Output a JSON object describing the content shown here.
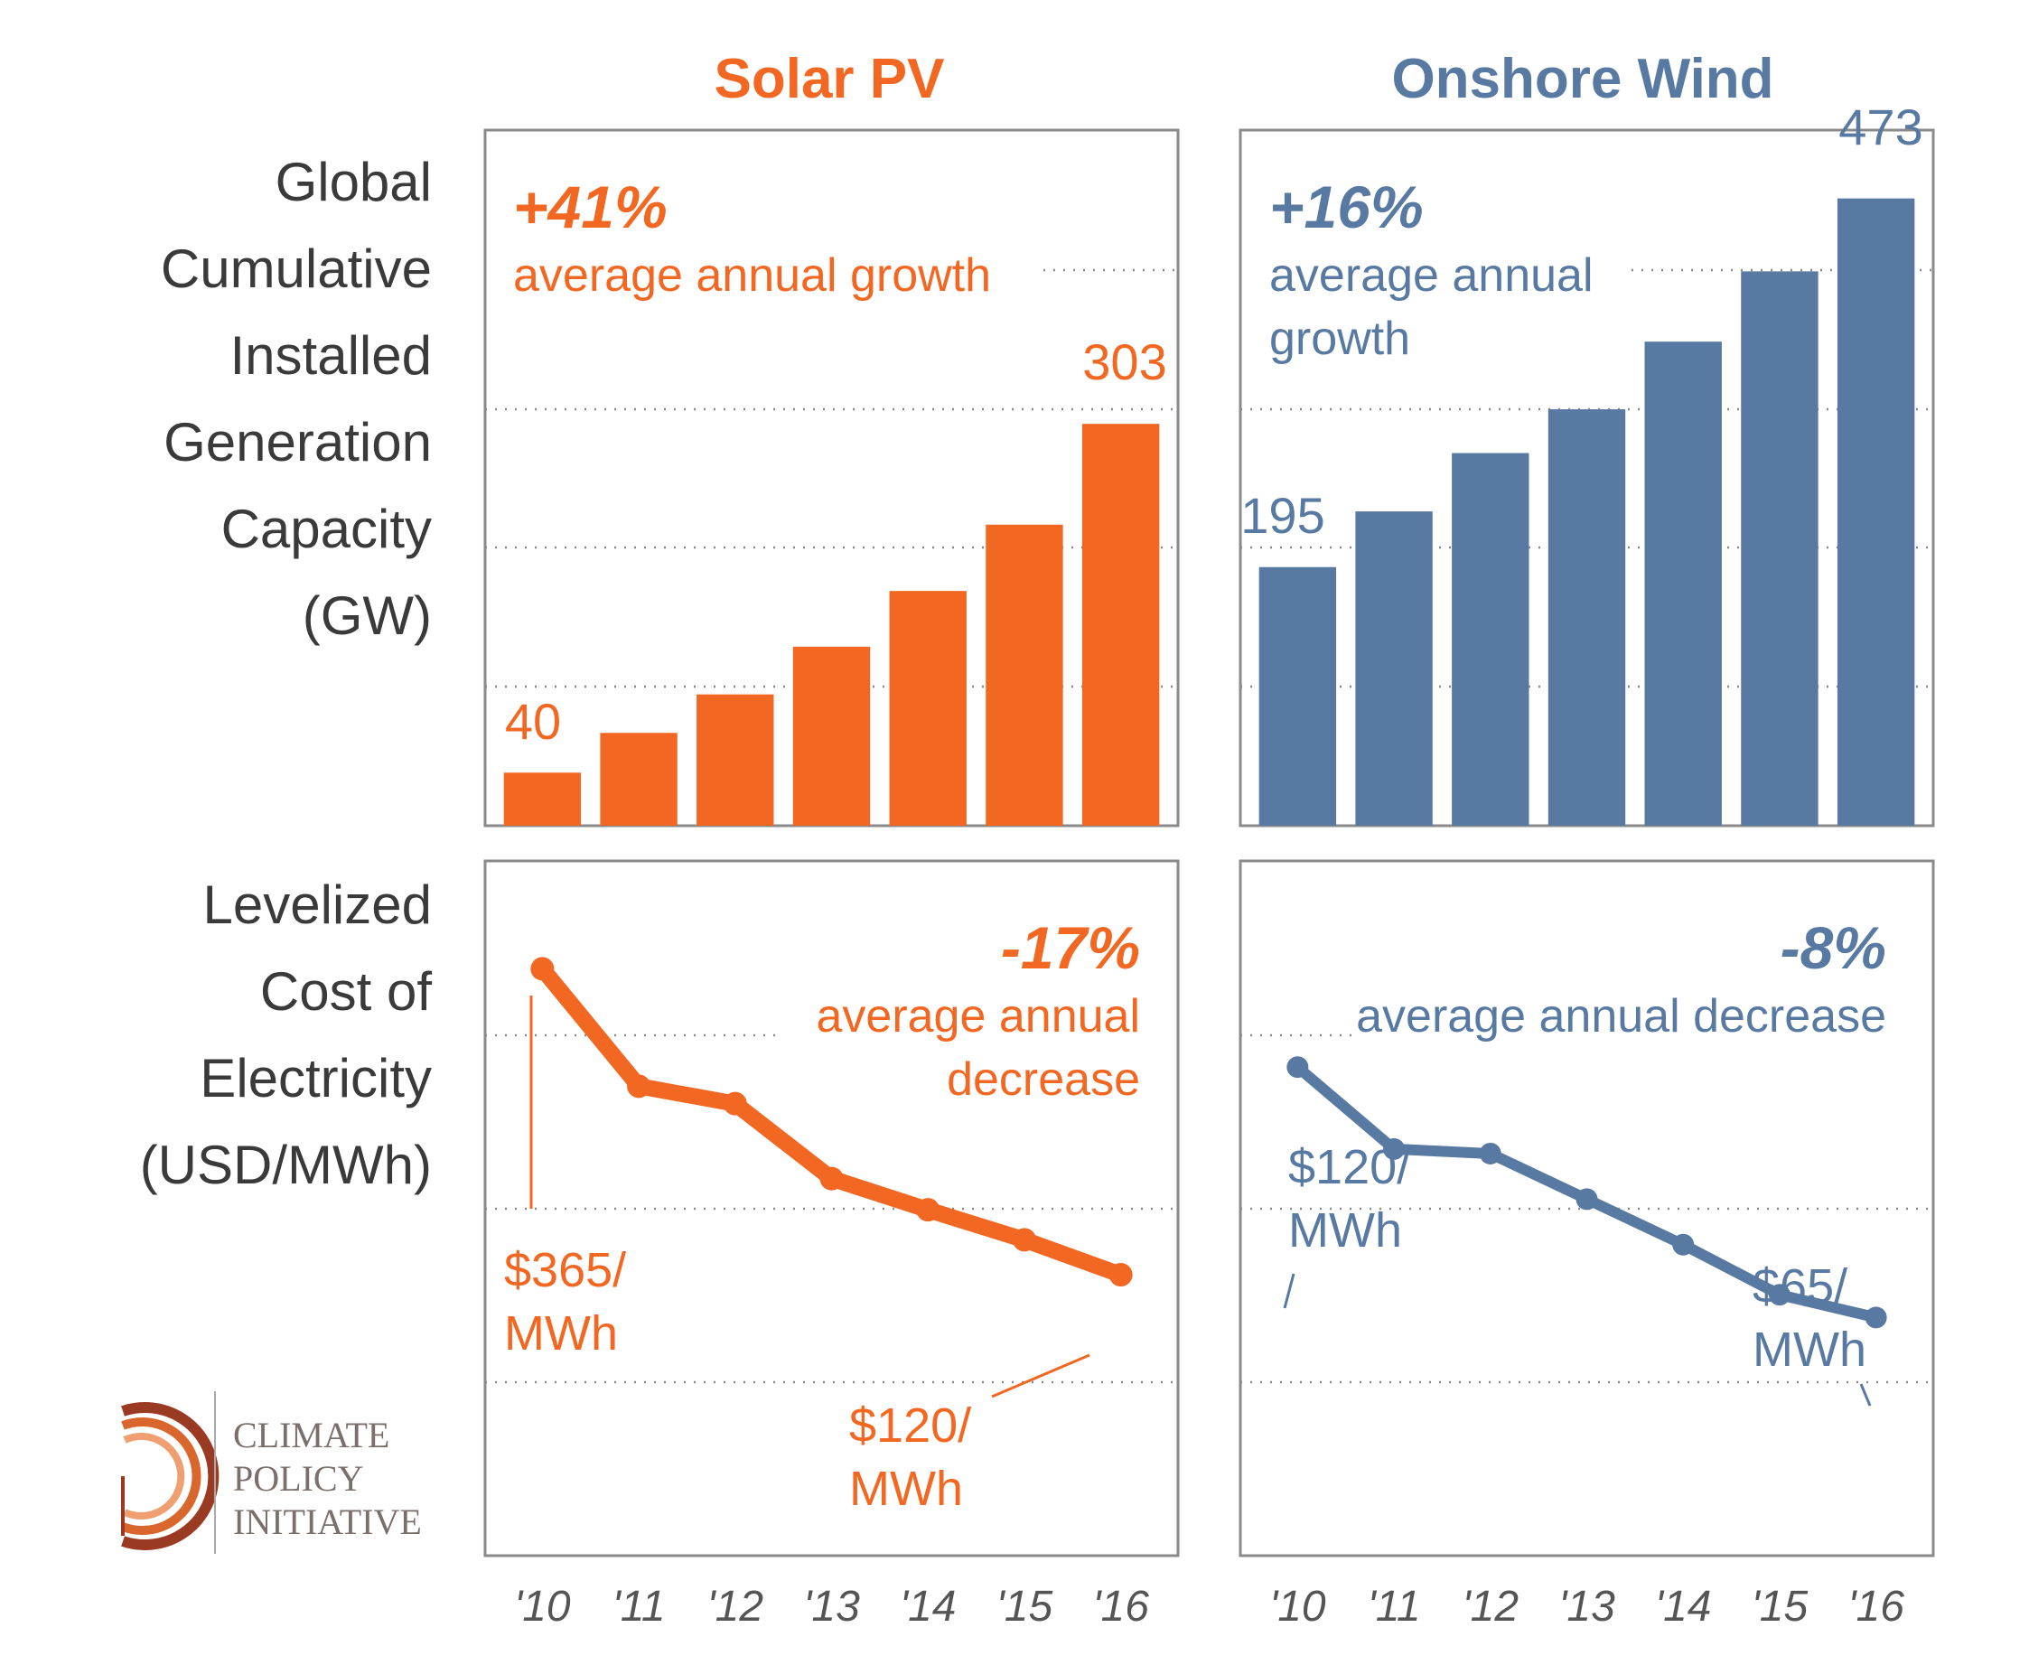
{
  "colors": {
    "solar": "#f26722",
    "wind": "#587aa2",
    "frame": "#8a8a8a",
    "grid": "#8a8a8a",
    "label": "#3a3a3a",
    "logo_text": "#7a6f6a",
    "logo_ring_dark": "#9b3a22",
    "logo_ring_mid": "#d9662c",
    "logo_ring_light": "#f0a070"
  },
  "row_labels": {
    "capacity": [
      "Global",
      "Cumulative",
      "Installed",
      "Generation",
      "Capacity",
      "(GW)"
    ],
    "lcoe": [
      "Levelized",
      "Cost of",
      "Electricity",
      "(USD/MWh)"
    ]
  },
  "columns": {
    "solar": {
      "title": "Solar PV",
      "growth_pct": "+41%",
      "growth_text": "average annual growth",
      "decrease_pct": "-17%",
      "decrease_lines": [
        "average annual",
        "decrease"
      ],
      "bar_first_label": "40",
      "bar_last_label": "303",
      "lcoe_start_label": [
        "$365/",
        "MWh"
      ],
      "lcoe_end_label": [
        "$120/",
        "MWh"
      ]
    },
    "wind": {
      "title": "Onshore Wind",
      "growth_pct": "+16%",
      "growth_lines": [
        "average annual",
        "growth"
      ],
      "decrease_pct": "-8%",
      "decrease_text": "average annual decrease",
      "bar_first_label": "195",
      "bar_last_label": "473",
      "lcoe_start_label": [
        "$120/",
        "MWh"
      ],
      "lcoe_end_label": [
        "$65/",
        "MWh"
      ]
    }
  },
  "logo": {
    "lines": [
      "CLIMATE",
      "POLICY",
      "INITIATIVE"
    ]
  },
  "chart_data": [
    {
      "type": "bar",
      "categories": [
        "'10",
        "'11",
        "'12",
        "'13",
        "'14",
        "'15",
        "'16"
      ],
      "series": [
        {
          "name": "Solar PV",
          "values": [
            40,
            70,
            99,
            135,
            177,
            227,
            303
          ]
        }
      ],
      "ylim": [
        0,
        500
      ],
      "grid": true
    },
    {
      "type": "bar",
      "categories": [
        "'10",
        "'11",
        "'12",
        "'13",
        "'14",
        "'15",
        "'16"
      ],
      "series": [
        {
          "name": "Onshore Wind",
          "values": [
            195,
            237,
            281,
            314,
            365,
            418,
            473
          ]
        }
      ],
      "ylim": [
        0,
        500
      ],
      "grid": true
    },
    {
      "type": "line",
      "categories": [
        "'10",
        "'11",
        "'12",
        "'13",
        "'14",
        "'15",
        "'16"
      ],
      "series": [
        {
          "name": "Solar PV",
          "values": [
            365,
            271,
            257,
            197,
            172,
            148,
            120
          ]
        }
      ],
      "ylim": [
        60,
        400
      ],
      "grid": true
    },
    {
      "type": "line",
      "categories": [
        "'10",
        "'11",
        "'12",
        "'13",
        "'14",
        "'15",
        "'16"
      ],
      "series": [
        {
          "name": "Onshore Wind",
          "values": [
            120,
            102,
            101,
            91,
            81,
            70,
            65
          ]
        }
      ],
      "ylim": [
        0,
        400
      ],
      "grid": true
    }
  ]
}
